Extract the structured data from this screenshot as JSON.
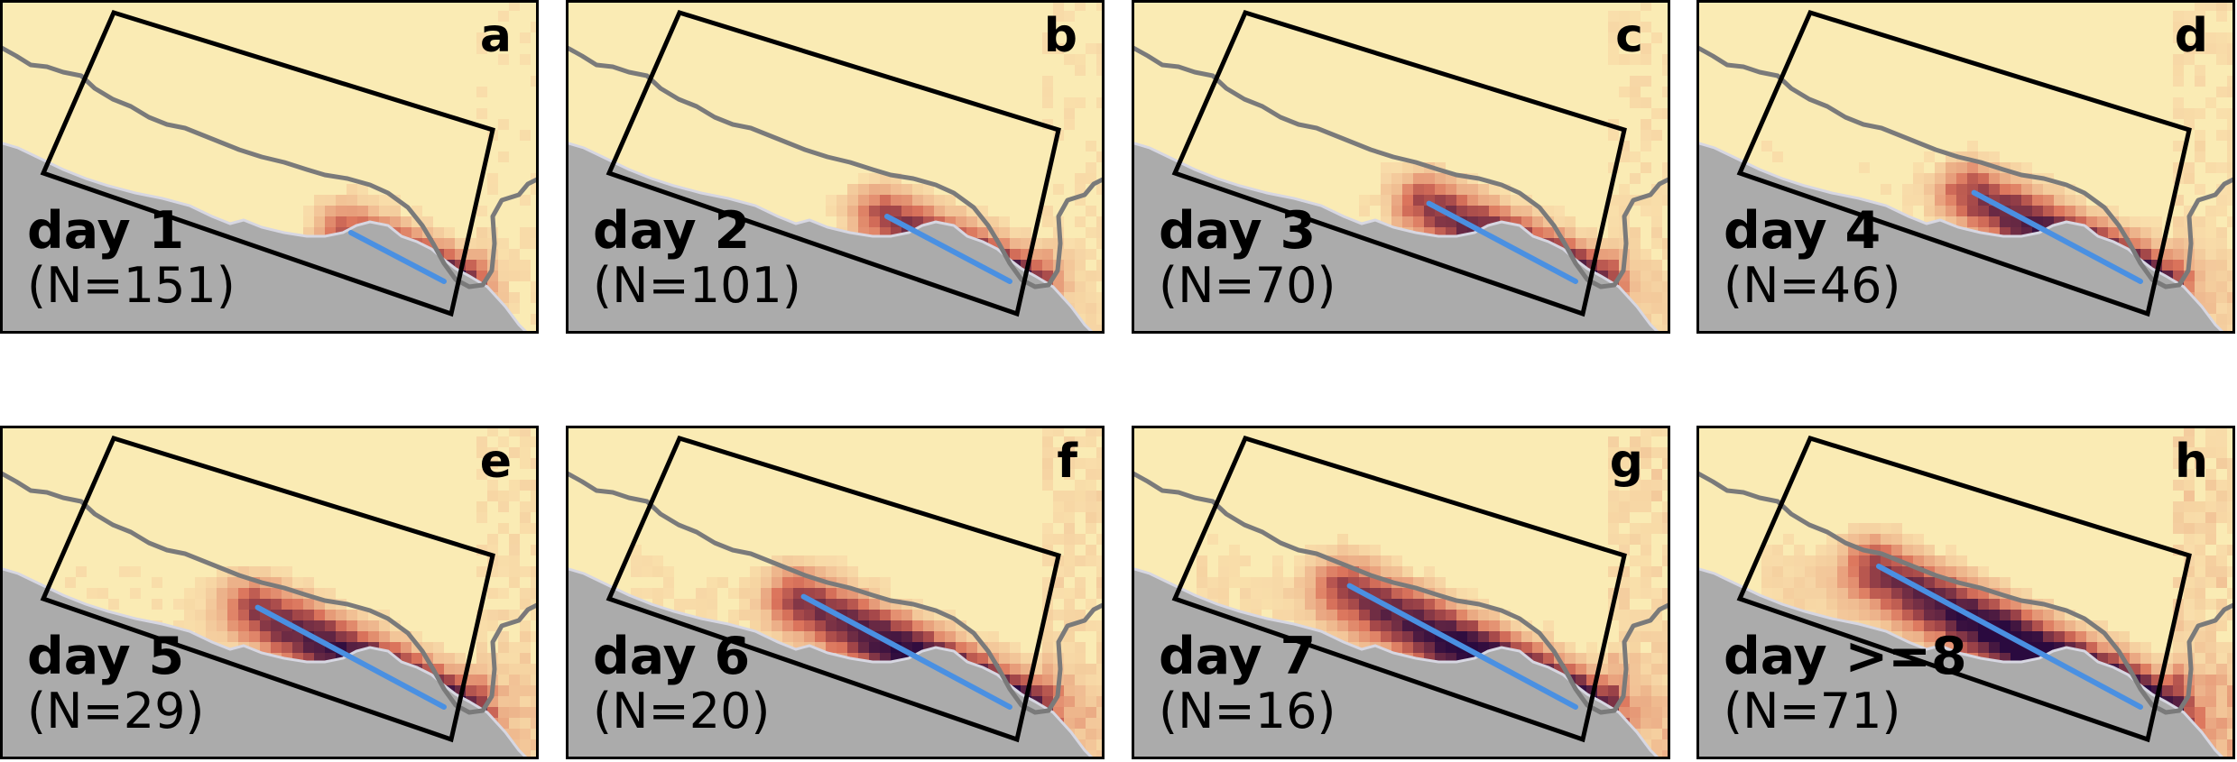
{
  "figure": {
    "panels": [
      {
        "letter": "a",
        "day": "day 1",
        "count": "(N=151)",
        "spread": 0.15
      },
      {
        "letter": "b",
        "day": "day 2",
        "count": "(N=101)",
        "spread": 0.3
      },
      {
        "letter": "c",
        "day": "day 3",
        "count": "(N=70)",
        "spread": 0.42
      },
      {
        "letter": "d",
        "day": "day 4",
        "count": "(N=46)",
        "spread": 0.52
      },
      {
        "letter": "e",
        "day": "day 5",
        "count": "(N=29)",
        "spread": 0.62
      },
      {
        "letter": "f",
        "day": "day 6",
        "count": "(N=20)",
        "spread": 0.72
      },
      {
        "letter": "g",
        "day": "day 7",
        "count": "(N=16)",
        "spread": 0.82
      },
      {
        "letter": "h",
        "day": "day >=8",
        "count": "(N=71)",
        "spread": 1.0
      }
    ],
    "colors": {
      "land": "#faebb4",
      "ocean": "#ababab",
      "border_line": "#7a7a7a",
      "domain_box": "#000000",
      "track_line": "#4a90e2",
      "density_low": "#f7c99b",
      "density_high": "#2a0a3f"
    }
  }
}
